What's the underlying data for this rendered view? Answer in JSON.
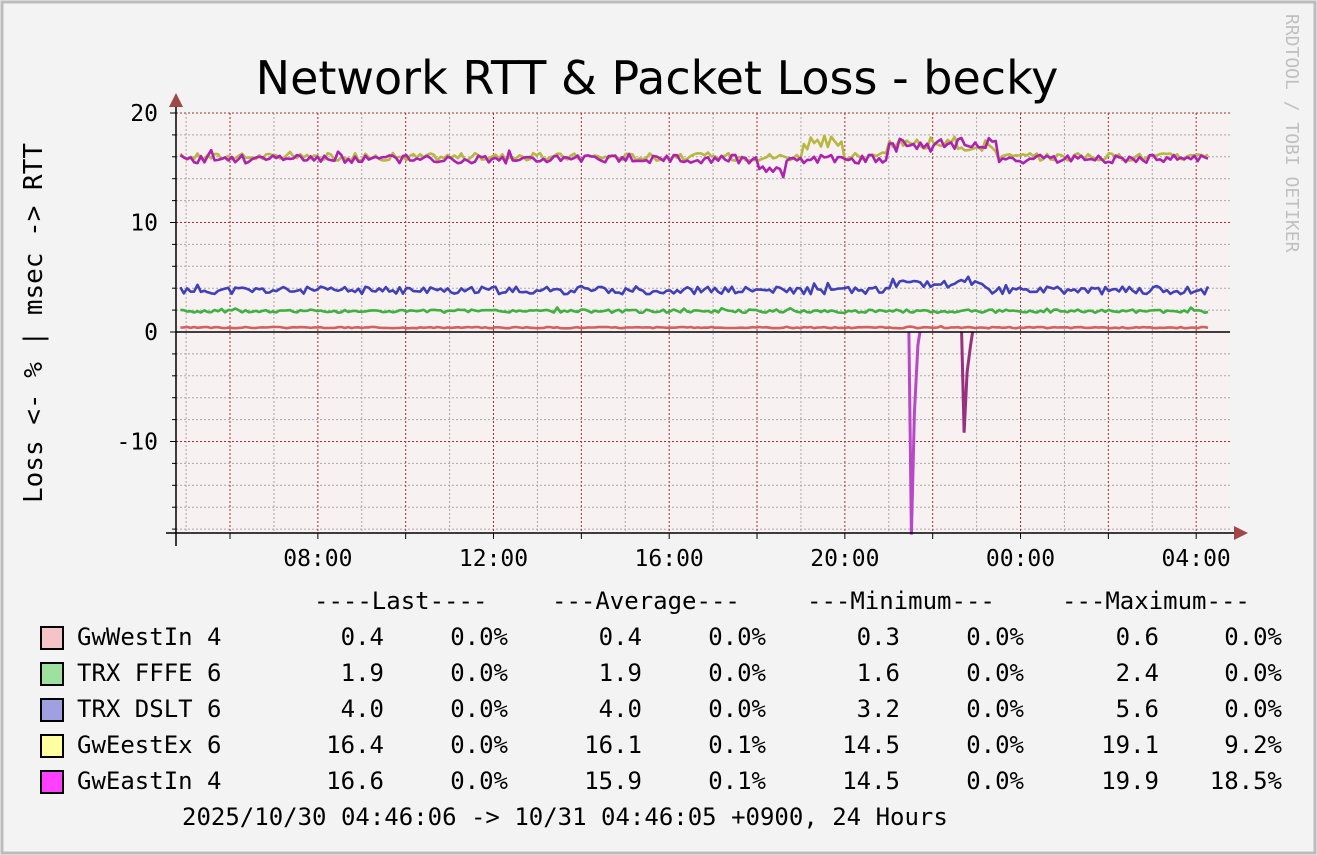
{
  "title": "Network RTT & Packet Loss - becky",
  "watermark": "RRDTOOL / TOBI OETIKER",
  "ylabel": "Loss <- % | msec -> RTT",
  "legend_header": {
    "last": "----Last----",
    "average": "---Average---",
    "minimum": "---Minimum---",
    "maximum": "---Maximum---"
  },
  "legend": [
    {
      "name": "GwWestIn 4",
      "swatch": "#f4c4c8",
      "last_rtt": "0.4",
      "last_loss": "0.0%",
      "avg_rtt": "0.4",
      "avg_loss": "0.0%",
      "min_rtt": "0.3",
      "min_loss": "0.0%",
      "max_rtt": "0.6",
      "max_loss": "0.0%"
    },
    {
      "name": "TRX FFFE 6",
      "swatch": "#9ee09e",
      "last_rtt": "1.9",
      "last_loss": "0.0%",
      "avg_rtt": "1.9",
      "avg_loss": "0.0%",
      "min_rtt": "1.6",
      "min_loss": "0.0%",
      "max_rtt": "2.4",
      "max_loss": "0.0%"
    },
    {
      "name": "TRX DSLT 6",
      "swatch": "#a0a0e0",
      "last_rtt": "4.0",
      "last_loss": "0.0%",
      "avg_rtt": "4.0",
      "avg_loss": "0.0%",
      "min_rtt": "3.2",
      "min_loss": "0.0%",
      "max_rtt": "5.6",
      "max_loss": "0.0%"
    },
    {
      "name": "GwEestEx 6",
      "swatch": "#ffffa0",
      "last_rtt": "16.4",
      "last_loss": "0.0%",
      "avg_rtt": "16.1",
      "avg_loss": "0.1%",
      "min_rtt": "14.5",
      "min_loss": "0.0%",
      "max_rtt": "19.1",
      "max_loss": "9.2%"
    },
    {
      "name": "GwEastIn 4",
      "swatch": "#ff40ff",
      "last_rtt": "16.6",
      "last_loss": "0.0%",
      "avg_rtt": "15.9",
      "avg_loss": "0.1%",
      "min_rtt": "14.5",
      "min_loss": "0.0%",
      "max_rtt": "19.9",
      "max_loss": "18.5%"
    }
  ],
  "footer": "2025/10/30 04:46:06 -> 10/31 04:46:05 +0900, 24 Hours",
  "colors": {
    "background": "#f3f3f3",
    "canvas": "#f7f1f1",
    "major_grid": "#a03030",
    "minor_grid": "#a0a0a0",
    "axis": "#000000",
    "arrow": "#a04848"
  },
  "chart_data": {
    "type": "line",
    "x_start": "2025/10/30 04:46:06",
    "x_end": "2025/10/31 04:46:05",
    "x_tick_labels": [
      "08:00",
      "12:00",
      "16:00",
      "20:00",
      "00:00",
      "04:00"
    ],
    "x_tick_hours": [
      8,
      12,
      16,
      20,
      24,
      28
    ],
    "x_range_hours": [
      4.77,
      28.77
    ],
    "ylim": [
      -18.5,
      20
    ],
    "y_ticks": [
      20,
      10,
      0,
      -10
    ],
    "grid": true,
    "series": [
      {
        "name": "GwWestIn 4",
        "color": "#d46060",
        "base": 0.4,
        "noise": 0.06,
        "seed": 3,
        "bumps": []
      },
      {
        "name": "TRX FFFE 6",
        "color": "#40b040",
        "base": 1.9,
        "noise": 0.15,
        "seed": 5,
        "bumps": []
      },
      {
        "name": "TRX DSLT 6",
        "color": "#4040b8",
        "base": 3.8,
        "noise": 0.35,
        "seed": 11,
        "bumps": [
          [
            21.0,
            23.2,
            0.8
          ]
        ]
      },
      {
        "name": "GwEestEx 6",
        "color": "#b8b840",
        "base": 16.0,
        "noise": 0.35,
        "seed": 17,
        "bumps": [
          [
            19.0,
            20.0,
            1.6
          ],
          [
            21.0,
            23.5,
            1.4
          ]
        ]
      },
      {
        "name": "GwEastIn 4",
        "color": "#b020b0",
        "base": 15.8,
        "noise": 0.4,
        "seed": 23,
        "bumps": [
          [
            21.0,
            23.5,
            1.8
          ],
          [
            18.0,
            18.6,
            -1.2
          ]
        ]
      }
    ],
    "loss_spikes": [
      {
        "hour": 21.55,
        "value": -18.5,
        "color": "#b848c8"
      },
      {
        "hour": 22.75,
        "value": -9.2,
        "color": "#983080"
      }
    ]
  }
}
